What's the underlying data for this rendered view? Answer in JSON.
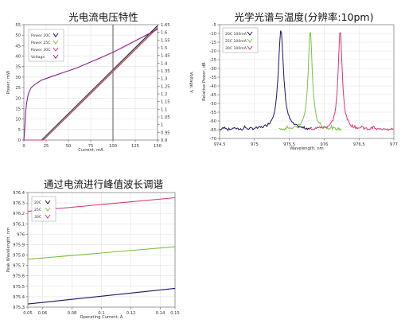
{
  "chart_data": [
    {
      "type": "line",
      "title": "光电流电压特性",
      "xlabel": "Current, mA",
      "ylabel": "Power, mW",
      "y2label": "Voltage, V",
      "xlim": [
        0,
        150
      ],
      "ylim": [
        0,
        55
      ],
      "y2lim": [
        0.9,
        1.65
      ],
      "xticks": [
        0,
        25,
        50,
        75,
        100,
        125,
        150
      ],
      "yticks": [
        0,
        5,
        10,
        15,
        20,
        25,
        30,
        35,
        40,
        45,
        50,
        55
      ],
      "y2ticks": [
        0.9,
        0.95,
        1,
        1.05,
        1.1,
        1.15,
        1.2,
        1.25,
        1.3,
        1.35,
        1.4,
        1.45,
        1.5,
        1.55,
        1.6,
        1.65
      ],
      "cursor_x": 100,
      "grid": true,
      "legend": "top-left",
      "series": [
        {
          "name": "Power 20C",
          "color": "#1b1464",
          "axis": "left",
          "x": [
            0,
            20,
            150
          ],
          "y": [
            0,
            0,
            54.5
          ]
        },
        {
          "name": "Power 25C",
          "color": "#7dc242",
          "axis": "left",
          "x": [
            0,
            21,
            150
          ],
          "y": [
            0,
            0,
            54
          ]
        },
        {
          "name": "Power 30C",
          "color": "#e0336e",
          "axis": "left",
          "x": [
            0,
            22,
            150
          ],
          "y": [
            0,
            0,
            53.5
          ]
        },
        {
          "name": "Voltage",
          "color": "#8b1c8f",
          "axis": "right",
          "x": [
            0,
            1,
            2,
            3,
            5,
            8,
            12,
            20,
            30,
            45,
            60,
            80,
            100,
            120,
            150
          ],
          "y": [
            0.9,
            0.97,
            1.08,
            1.14,
            1.2,
            1.24,
            1.26,
            1.29,
            1.31,
            1.34,
            1.37,
            1.42,
            1.47,
            1.53,
            1.62
          ]
        }
      ]
    },
    {
      "type": "line",
      "title": "光学光谱与温度(分辨率:10pm)",
      "xlabel": "Wavelength, nm",
      "ylabel": "Relative Power, dB",
      "xlim": [
        974.5,
        977
      ],
      "ylim": [
        -70,
        -5
      ],
      "xticks": [
        974.5,
        975,
        975.5,
        976,
        976.5,
        977
      ],
      "yticks": [
        -5,
        -10,
        -15,
        -20,
        -25,
        -30,
        -35,
        -40,
        -45,
        -50,
        -55,
        -60,
        -65,
        -70
      ],
      "grid": true,
      "legend": "top-left",
      "series": [
        {
          "name": "20C 100mA",
          "color": "#1b1464",
          "peak": 975.38,
          "width": 0.045
        },
        {
          "name": "25C 100mA",
          "color": "#7dc242",
          "peak": 975.8,
          "width": 0.035
        },
        {
          "name": "30C 100mA",
          "color": "#e0336e",
          "peak": 976.23,
          "width": 0.035
        }
      ]
    },
    {
      "type": "line",
      "title": "通过电流进行峰值波长调谐",
      "xlabel": "Operating Current, A",
      "ylabel": "Peak Wavelength, nm",
      "xlim": [
        0.05,
        0.15
      ],
      "ylim": [
        975.3,
        976.4
      ],
      "xticks": [
        0.05,
        0.06,
        0.08,
        0.1,
        0.12,
        0.14,
        0.15
      ],
      "yticks": [
        975.3,
        975.4,
        975.5,
        975.6,
        975.7,
        975.8,
        975.9,
        976,
        976.1,
        976.2,
        976.3,
        976.4
      ],
      "grid": true,
      "legend": "top-left",
      "series": [
        {
          "name": "20C",
          "color": "#1b1464",
          "x": [
            0.05,
            0.15
          ],
          "y": [
            975.33,
            975.48
          ]
        },
        {
          "name": "25C",
          "color": "#7dc242",
          "x": [
            0.05,
            0.15
          ],
          "y": [
            975.76,
            975.88
          ]
        },
        {
          "name": "30C",
          "color": "#e0336e",
          "x": [
            0.05,
            0.15
          ],
          "y": [
            976.22,
            976.35
          ]
        }
      ]
    }
  ]
}
